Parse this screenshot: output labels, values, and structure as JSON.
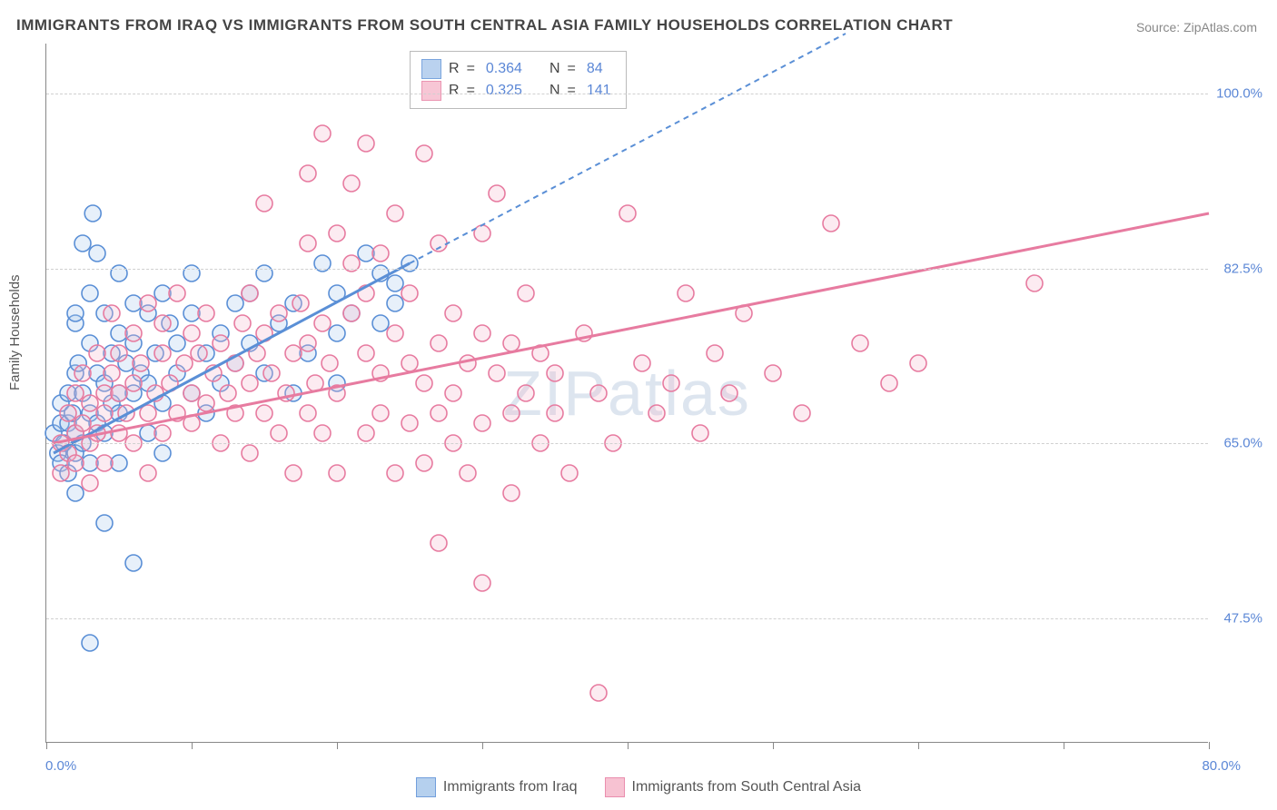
{
  "title": "IMMIGRANTS FROM IRAQ VS IMMIGRANTS FROM SOUTH CENTRAL ASIA FAMILY HOUSEHOLDS CORRELATION CHART",
  "source": "Source: ZipAtlas.com",
  "ylabel": "Family Households",
  "watermark_zip": "ZIP",
  "watermark_atlas": "atlas",
  "chart": {
    "type": "scatter",
    "xlim": [
      0,
      80
    ],
    "ylim": [
      35,
      105
    ],
    "yticks": [
      {
        "v": 47.5,
        "label": "47.5%"
      },
      {
        "v": 65.0,
        "label": "65.0%"
      },
      {
        "v": 82.5,
        "label": "82.5%"
      },
      {
        "v": 100.0,
        "label": "100.0%"
      }
    ],
    "xticks": [
      0,
      10,
      20,
      30,
      40,
      50,
      60,
      70,
      80
    ],
    "x_min_label": "0.0%",
    "x_max_label": "80.0%",
    "background_color": "#ffffff",
    "grid_color": "#d8d8d8",
    "marker_radius": 9,
    "marker_stroke_width": 1.6,
    "marker_fill_opacity": 0.28,
    "series": [
      {
        "name": "Immigrants from Iraq",
        "color_stroke": "#5a8fd6",
        "color_fill": "#a9c8ec",
        "R": "0.364",
        "N": "84",
        "trend": {
          "x1": 0.5,
          "y1": 64,
          "x2": 25,
          "y2": 83,
          "dash_to_x": 55,
          "dash_to_y": 106
        },
        "points": [
          [
            0.5,
            66
          ],
          [
            0.8,
            64
          ],
          [
            1,
            67
          ],
          [
            1,
            63
          ],
          [
            1,
            69
          ],
          [
            1.2,
            65
          ],
          [
            1.5,
            70
          ],
          [
            1.5,
            62
          ],
          [
            1.5,
            67
          ],
          [
            1.8,
            68
          ],
          [
            2,
            77
          ],
          [
            2,
            78
          ],
          [
            2,
            72
          ],
          [
            2,
            66
          ],
          [
            2,
            60
          ],
          [
            2,
            64
          ],
          [
            2.2,
            73
          ],
          [
            2.5,
            85
          ],
          [
            2.5,
            65
          ],
          [
            2.5,
            70
          ],
          [
            3,
            80
          ],
          [
            3,
            68
          ],
          [
            3,
            75
          ],
          [
            3,
            63
          ],
          [
            3,
            45
          ],
          [
            3.2,
            88
          ],
          [
            3.5,
            84
          ],
          [
            3.5,
            67
          ],
          [
            3.5,
            72
          ],
          [
            4,
            71
          ],
          [
            4,
            66
          ],
          [
            4,
            78
          ],
          [
            4,
            57
          ],
          [
            4.5,
            74
          ],
          [
            4.5,
            69
          ],
          [
            5,
            82
          ],
          [
            5,
            68
          ],
          [
            5,
            76
          ],
          [
            5,
            70
          ],
          [
            5,
            63
          ],
          [
            5.5,
            73
          ],
          [
            6,
            79
          ],
          [
            6,
            75
          ],
          [
            6,
            70
          ],
          [
            6,
            53
          ],
          [
            6.5,
            72
          ],
          [
            7,
            78
          ],
          [
            7,
            66
          ],
          [
            7,
            71
          ],
          [
            7.5,
            74
          ],
          [
            8,
            80
          ],
          [
            8,
            69
          ],
          [
            8,
            64
          ],
          [
            8.5,
            77
          ],
          [
            9,
            72
          ],
          [
            9,
            75
          ],
          [
            10,
            78
          ],
          [
            10,
            70
          ],
          [
            10,
            82
          ],
          [
            11,
            74
          ],
          [
            11,
            68
          ],
          [
            12,
            76
          ],
          [
            12,
            71
          ],
          [
            13,
            79
          ],
          [
            13,
            73
          ],
          [
            14,
            75
          ],
          [
            14,
            80
          ],
          [
            15,
            72
          ],
          [
            15,
            82
          ],
          [
            16,
            77
          ],
          [
            17,
            70
          ],
          [
            17,
            79
          ],
          [
            18,
            74
          ],
          [
            19,
            83
          ],
          [
            20,
            76
          ],
          [
            20,
            80
          ],
          [
            21,
            78
          ],
          [
            22,
            84
          ],
          [
            23,
            82
          ],
          [
            24,
            79
          ],
          [
            23,
            77
          ],
          [
            24,
            81
          ],
          [
            25,
            83
          ],
          [
            20,
            71
          ]
        ]
      },
      {
        "name": "Immigrants from South Central Asia",
        "color_stroke": "#e77ba0",
        "color_fill": "#f6b8cb",
        "R": "0.325",
        "N": "141",
        "trend": {
          "x1": 0.5,
          "y1": 65,
          "x2": 80,
          "y2": 88
        },
        "points": [
          [
            1,
            65
          ],
          [
            1,
            62
          ],
          [
            1.5,
            68
          ],
          [
            1.5,
            64
          ],
          [
            2,
            70
          ],
          [
            2,
            66
          ],
          [
            2,
            63
          ],
          [
            2.5,
            67
          ],
          [
            2.5,
            72
          ],
          [
            3,
            65
          ],
          [
            3,
            69
          ],
          [
            3,
            61
          ],
          [
            3.5,
            74
          ],
          [
            3.5,
            66
          ],
          [
            4,
            70
          ],
          [
            4,
            63
          ],
          [
            4,
            68
          ],
          [
            4.5,
            78
          ],
          [
            4.5,
            72
          ],
          [
            5,
            66
          ],
          [
            5,
            70
          ],
          [
            5,
            74
          ],
          [
            5.5,
            68
          ],
          [
            6,
            76
          ],
          [
            6,
            71
          ],
          [
            6,
            65
          ],
          [
            6.5,
            73
          ],
          [
            7,
            68
          ],
          [
            7,
            79
          ],
          [
            7,
            62
          ],
          [
            7.5,
            70
          ],
          [
            8,
            74
          ],
          [
            8,
            66
          ],
          [
            8,
            77
          ],
          [
            8.5,
            71
          ],
          [
            9,
            68
          ],
          [
            9,
            80
          ],
          [
            9.5,
            73
          ],
          [
            10,
            67
          ],
          [
            10,
            76
          ],
          [
            10,
            70
          ],
          [
            10.5,
            74
          ],
          [
            11,
            69
          ],
          [
            11,
            78
          ],
          [
            11.5,
            72
          ],
          [
            12,
            65
          ],
          [
            12,
            75
          ],
          [
            12.5,
            70
          ],
          [
            13,
            73
          ],
          [
            13,
            68
          ],
          [
            13.5,
            77
          ],
          [
            14,
            71
          ],
          [
            14,
            80
          ],
          [
            14,
            64
          ],
          [
            14.5,
            74
          ],
          [
            15,
            68
          ],
          [
            15,
            76
          ],
          [
            15,
            89
          ],
          [
            15.5,
            72
          ],
          [
            16,
            66
          ],
          [
            16,
            78
          ],
          [
            16.5,
            70
          ],
          [
            17,
            74
          ],
          [
            17,
            62
          ],
          [
            17.5,
            79
          ],
          [
            18,
            68
          ],
          [
            18,
            75
          ],
          [
            18,
            85
          ],
          [
            18,
            92
          ],
          [
            18.5,
            71
          ],
          [
            19,
            66
          ],
          [
            19,
            77
          ],
          [
            19,
            96
          ],
          [
            19.5,
            73
          ],
          [
            20,
            70
          ],
          [
            20,
            62
          ],
          [
            20,
            86
          ],
          [
            21,
            83
          ],
          [
            21,
            78
          ],
          [
            21,
            91
          ],
          [
            22,
            74
          ],
          [
            22,
            66
          ],
          [
            22,
            80
          ],
          [
            22,
            95
          ],
          [
            23,
            72
          ],
          [
            23,
            68
          ],
          [
            23,
            84
          ],
          [
            24,
            76
          ],
          [
            24,
            62
          ],
          [
            24,
            88
          ],
          [
            25,
            73
          ],
          [
            25,
            67
          ],
          [
            25,
            80
          ],
          [
            26,
            71
          ],
          [
            26,
            63
          ],
          [
            26,
            94
          ],
          [
            27,
            75
          ],
          [
            27,
            68
          ],
          [
            27,
            85
          ],
          [
            27,
            55
          ],
          [
            28,
            70
          ],
          [
            28,
            78
          ],
          [
            28,
            65
          ],
          [
            29,
            73
          ],
          [
            29,
            62
          ],
          [
            30,
            76
          ],
          [
            30,
            67
          ],
          [
            30,
            86
          ],
          [
            30,
            51
          ],
          [
            31,
            72
          ],
          [
            31,
            90
          ],
          [
            32,
            68
          ],
          [
            32,
            75
          ],
          [
            32,
            60
          ],
          [
            33,
            70
          ],
          [
            33,
            80
          ],
          [
            34,
            65
          ],
          [
            34,
            74
          ],
          [
            35,
            68
          ],
          [
            35,
            72
          ],
          [
            36,
            62
          ],
          [
            37,
            76
          ],
          [
            38,
            70
          ],
          [
            38,
            40
          ],
          [
            39,
            65
          ],
          [
            40,
            88
          ],
          [
            41,
            73
          ],
          [
            42,
            68
          ],
          [
            43,
            71
          ],
          [
            44,
            80
          ],
          [
            45,
            66
          ],
          [
            46,
            74
          ],
          [
            47,
            70
          ],
          [
            48,
            78
          ],
          [
            50,
            72
          ],
          [
            52,
            68
          ],
          [
            54,
            87
          ],
          [
            56,
            75
          ],
          [
            58,
            71
          ],
          [
            60,
            73
          ],
          [
            68,
            81
          ]
        ]
      }
    ]
  },
  "legend": {
    "r_label": "R",
    "n_label": "N",
    "eq": "="
  }
}
